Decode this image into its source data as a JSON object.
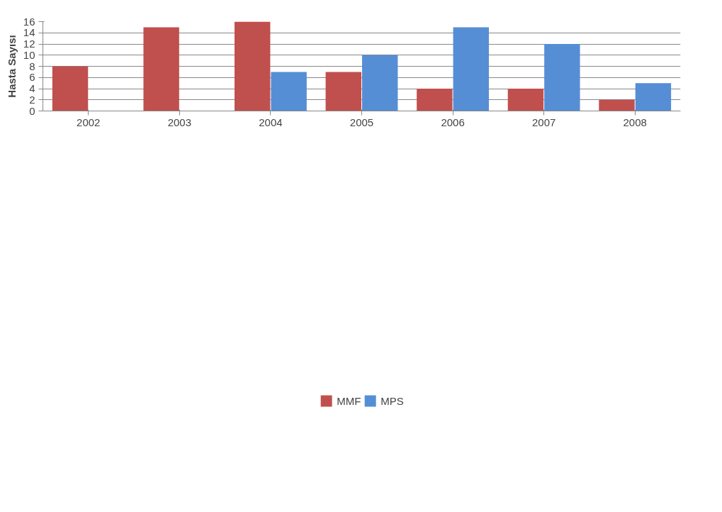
{
  "chart_data": {
    "type": "bar",
    "ylabel": "Hasta Sayısı",
    "categories": [
      "2002",
      "2003",
      "2004",
      "2005",
      "2006",
      "2007",
      "2008"
    ],
    "series": [
      {
        "name": "MMF",
        "color": "#c0504d",
        "values": [
          8,
          15,
          16,
          7,
          4,
          4,
          2
        ]
      },
      {
        "name": "MPS",
        "color": "#558ed5",
        "values": [
          0,
          0,
          7,
          10,
          15,
          12,
          5
        ]
      }
    ],
    "ylim": [
      0,
      16
    ],
    "yticks": [
      0,
      2,
      4,
      6,
      8,
      10,
      12,
      14,
      16
    ],
    "grid": "y",
    "legend": "bottom"
  }
}
